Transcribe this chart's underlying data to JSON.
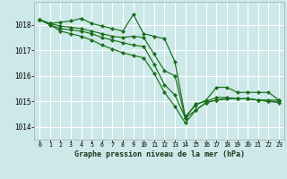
{
  "title": "Graphe pression niveau de la mer (hPa)",
  "bg_color": "#cce8e8",
  "grid_color": "#ffffff",
  "line_color": "#1a6e1a",
  "xlim": [
    -0.5,
    23.5
  ],
  "ylim": [
    1013.5,
    1018.9
  ],
  "yticks": [
    1014,
    1015,
    1016,
    1017,
    1018
  ],
  "xticks": [
    0,
    1,
    2,
    3,
    4,
    5,
    6,
    7,
    8,
    9,
    10,
    11,
    12,
    13,
    14,
    15,
    16,
    17,
    18,
    19,
    20,
    21,
    22,
    23
  ],
  "series": [
    {
      "x": [
        0,
        1,
        2,
        3,
        4,
        5,
        6,
        7,
        8,
        9,
        10,
        11,
        12,
        13,
        14,
        15,
        16,
        17,
        18,
        19,
        20,
        21,
        22,
        23
      ],
      "y": [
        1018.2,
        1018.05,
        1018.1,
        1018.15,
        1018.25,
        1018.05,
        1017.95,
        1017.85,
        1017.75,
        1018.4,
        1017.65,
        1017.55,
        1017.45,
        1016.55,
        1014.4,
        1014.85,
        1015.05,
        1015.55,
        1015.55,
        1015.35,
        1015.35,
        1015.35,
        1015.35,
        1015.05
      ]
    },
    {
      "x": [
        0,
        1,
        2,
        3,
        4,
        5,
        6,
        7,
        8,
        9,
        10,
        11,
        12,
        13,
        14,
        15,
        16,
        17,
        18,
        19,
        20,
        21,
        22,
        23
      ],
      "y": [
        1018.2,
        1018.05,
        1017.95,
        1017.9,
        1017.85,
        1017.75,
        1017.65,
        1017.55,
        1017.5,
        1017.55,
        1017.5,
        1016.85,
        1016.2,
        1016.0,
        1014.35,
        1014.9,
        1015.0,
        1015.15,
        1015.15,
        1015.1,
        1015.1,
        1015.05,
        1015.05,
        1015.05
      ]
    },
    {
      "x": [
        0,
        1,
        2,
        3,
        4,
        5,
        6,
        7,
        8,
        9,
        10,
        11,
        12,
        13,
        14,
        15,
        16,
        17,
        18,
        19,
        20,
        21,
        22,
        23
      ],
      "y": [
        1018.2,
        1018.0,
        1017.85,
        1017.8,
        1017.75,
        1017.65,
        1017.5,
        1017.4,
        1017.3,
        1017.2,
        1017.15,
        1016.45,
        1015.65,
        1015.25,
        1014.35,
        1014.65,
        1014.95,
        1015.05,
        1015.1,
        1015.1,
        1015.1,
        1015.05,
        1015.0,
        1015.0
      ]
    },
    {
      "x": [
        0,
        1,
        2,
        3,
        4,
        5,
        6,
        7,
        8,
        9,
        10,
        11,
        12,
        13,
        14,
        15,
        16,
        17,
        18,
        19,
        20,
        21,
        22,
        23
      ],
      "y": [
        1018.2,
        1018.0,
        1017.75,
        1017.65,
        1017.55,
        1017.4,
        1017.2,
        1017.05,
        1016.9,
        1016.8,
        1016.7,
        1016.1,
        1015.35,
        1014.8,
        1014.15,
        1014.65,
        1014.95,
        1015.05,
        1015.1,
        1015.1,
        1015.1,
        1015.05,
        1015.0,
        1014.95
      ]
    }
  ]
}
